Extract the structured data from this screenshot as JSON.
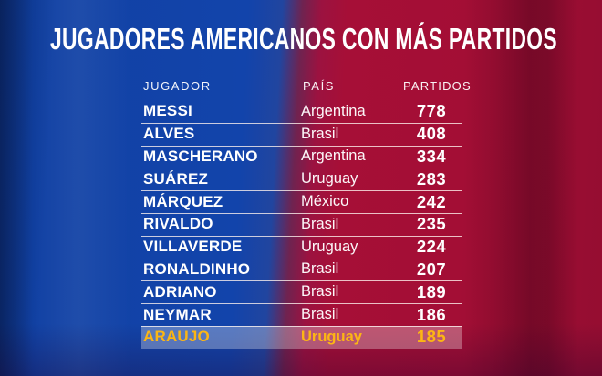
{
  "title": "JUGADORES AMERICANOS CON MÁS PARTIDOS",
  "table": {
    "headers": {
      "player": "JUGADOR",
      "country": "PAÍS",
      "matches": "PARTIDOS"
    },
    "rows": [
      {
        "player": "MESSI",
        "country": "Argentina",
        "matches": "778",
        "highlight": false
      },
      {
        "player": "ALVES",
        "country": "Brasil",
        "matches": "408",
        "highlight": false
      },
      {
        "player": "MASCHERANO",
        "country": "Argentina",
        "matches": "334",
        "highlight": false
      },
      {
        "player": "SUÁREZ",
        "country": "Uruguay",
        "matches": "283",
        "highlight": false
      },
      {
        "player": "MÁRQUEZ",
        "country": "México",
        "matches": "242",
        "highlight": false
      },
      {
        "player": "RIVALDO",
        "country": "Brasil",
        "matches": "235",
        "highlight": false
      },
      {
        "player": "VILLAVERDE",
        "country": "Uruguay",
        "matches": "224",
        "highlight": false
      },
      {
        "player": "RONALDINHO",
        "country": "Brasil",
        "matches": "207",
        "highlight": false
      },
      {
        "player": "ADRIANO",
        "country": "Brasil",
        "matches": "189",
        "highlight": false
      },
      {
        "player": "NEYMAR",
        "country": "Brasil",
        "matches": "186",
        "highlight": false
      },
      {
        "player": "ARAUJO",
        "country": "Uruguay",
        "matches": "185",
        "highlight": true
      }
    ]
  },
  "colors": {
    "background_blue": "#1243a8",
    "background_red": "#a30e36",
    "highlight_gold": "#fcb614",
    "highlight_band": "rgba(255,255,255,0.30)",
    "separator_line": "rgba(255,244,238,0.78)",
    "text": "#ffffff"
  },
  "chart_data": {
    "type": "table",
    "title": "JUGADORES AMERICANOS CON MÁS PARTIDOS",
    "columns": [
      "JUGADOR",
      "PAÍS",
      "PARTIDOS"
    ],
    "rows": [
      [
        "MESSI",
        "Argentina",
        778
      ],
      [
        "ALVES",
        "Brasil",
        408
      ],
      [
        "MASCHERANO",
        "Argentina",
        334
      ],
      [
        "SUÁREZ",
        "Uruguay",
        283
      ],
      [
        "MÁRQUEZ",
        "México",
        242
      ],
      [
        "RIVALDO",
        "Brasil",
        235
      ],
      [
        "VILLAVERDE",
        "Uruguay",
        224
      ],
      [
        "RONALDINHO",
        "Brasil",
        207
      ],
      [
        "ADRIANO",
        "Brasil",
        189
      ],
      [
        "NEYMAR",
        "Brasil",
        186
      ],
      [
        "ARAUJO",
        "Uruguay",
        185
      ]
    ],
    "highlighted_row": "ARAUJO",
    "layout_hints": {
      "background": "diagonal split blue left / crimson right (FC Barcelona colors)",
      "highlight_style": "semi-transparent white band with gold bold text",
      "grid": "thin light separator lines between rows only"
    }
  }
}
